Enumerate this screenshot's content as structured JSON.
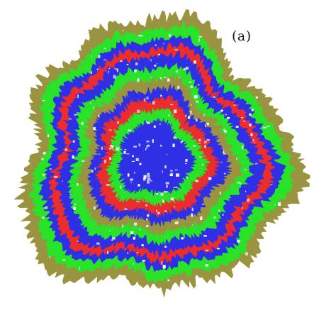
{
  "figure": {
    "panel_label": "(a)",
    "ring_colors": [
      "#9a9440",
      "#29e329",
      "#2f2fe6",
      "#ec2d2d"
    ],
    "core_color": "#2f2fe6",
    "background": "#ffffff"
  }
}
